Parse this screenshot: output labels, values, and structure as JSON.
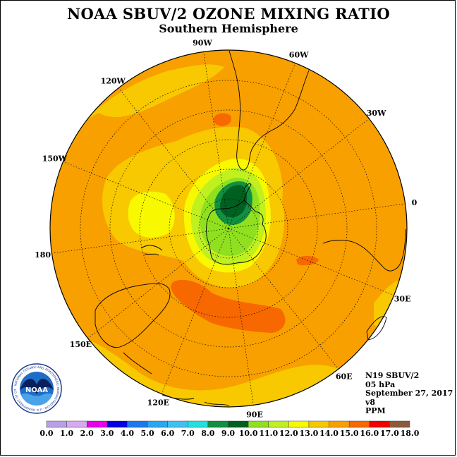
{
  "title": "NOAA SBUV/2 OZONE MIXING RATIO",
  "subtitle": "Southern Hemisphere",
  "longitude_labels": [
    "90W",
    "60W",
    "30W",
    "0",
    "30E",
    "60E",
    "90E",
    "120E",
    "150E",
    "180",
    "150W",
    "120W"
  ],
  "info": {
    "satellite": "N19 SBUV/2",
    "pressure": "05 hPa",
    "date": "September 27, 2017",
    "version": "v8",
    "units": "PPM"
  },
  "logo": {
    "text": "NOAA",
    "ring_text": "NATIONAL OCEANIC AND ATMOSPHERIC ADMINISTRATION · U.S. DEPARTMENT OF COMMERCE"
  },
  "colorbar": {
    "ticks": [
      "0.0",
      "1.0",
      "2.0",
      "3.0",
      "4.0",
      "5.0",
      "6.0",
      "7.0",
      "8.0",
      "9.0",
      "10.0",
      "11.0",
      "12.0",
      "13.0",
      "14.0",
      "15.0",
      "16.0",
      "17.0",
      "18.0"
    ],
    "colors": [
      "#b8a0e8",
      "#d8a8f0",
      "#e800e8",
      "#0000e0",
      "#1e78f0",
      "#28a8f0",
      "#40c0f0",
      "#20e0e0",
      "#109040",
      "#006020",
      "#90e020",
      "#c0f020",
      "#f8f800",
      "#f8c800",
      "#f8a000",
      "#f86800",
      "#f00000",
      "#8b5a3a"
    ]
  }
}
